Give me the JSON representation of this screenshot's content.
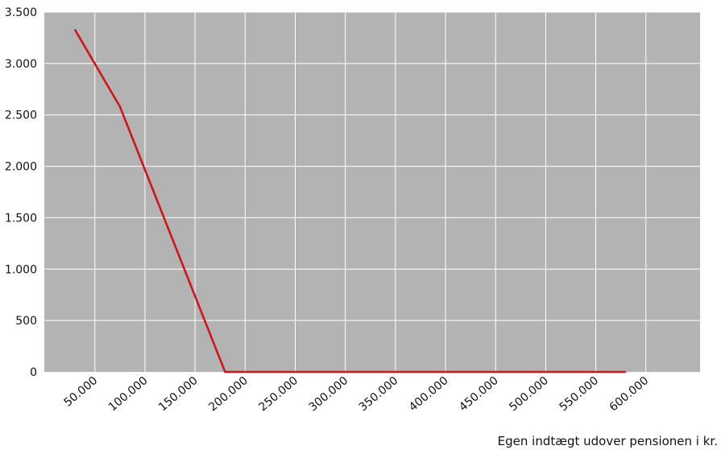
{
  "chart_data": {
    "type": "line",
    "title": "",
    "xlabel": "Egen indtægt udover pensionen i kr.",
    "ylabel": "",
    "x_tick_labels": [
      "50.000",
      "100.000",
      "150.000",
      "200.000",
      "250.000",
      "300.000",
      "350.000",
      "400.000",
      "450.000",
      "500.000",
      "550.000",
      "600.000"
    ],
    "y_tick_labels": [
      "0",
      "500",
      "1.000",
      "1.500",
      "2.000",
      "2.500",
      "3.000",
      "3.500"
    ],
    "y_tick_values": [
      0,
      500,
      1000,
      1500,
      2000,
      2500,
      3000,
      3500
    ],
    "ylim": [
      0,
      3500
    ],
    "grid": true,
    "legend": "none",
    "series": [
      {
        "x": [
          30000,
          75000,
          180000,
          580000
        ],
        "values": [
          3330,
          2580,
          0,
          0
        ]
      }
    ],
    "colors": {
      "plot_background": "#b3b3b3",
      "grid": "#ffffff",
      "line": "#d0161b"
    }
  }
}
